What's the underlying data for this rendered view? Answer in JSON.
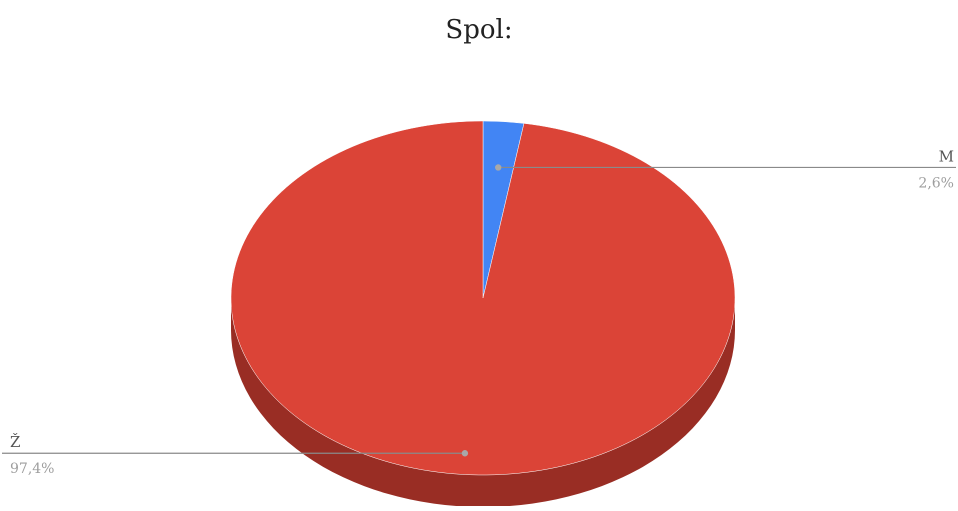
{
  "chart_data": {
    "type": "pie",
    "title": "Spol:",
    "slices": [
      {
        "label": "M",
        "value": 2.6,
        "value_label": "2,6%",
        "color": "#4285f4",
        "side_color": "#2f64b8"
      },
      {
        "label": "Ž",
        "value": 97.4,
        "value_label": "97,4%",
        "color": "#db4437",
        "side_color": "#992d24"
      }
    ],
    "style": "3d",
    "legend": "none",
    "label_placement": "outside-with-leader-lines"
  }
}
